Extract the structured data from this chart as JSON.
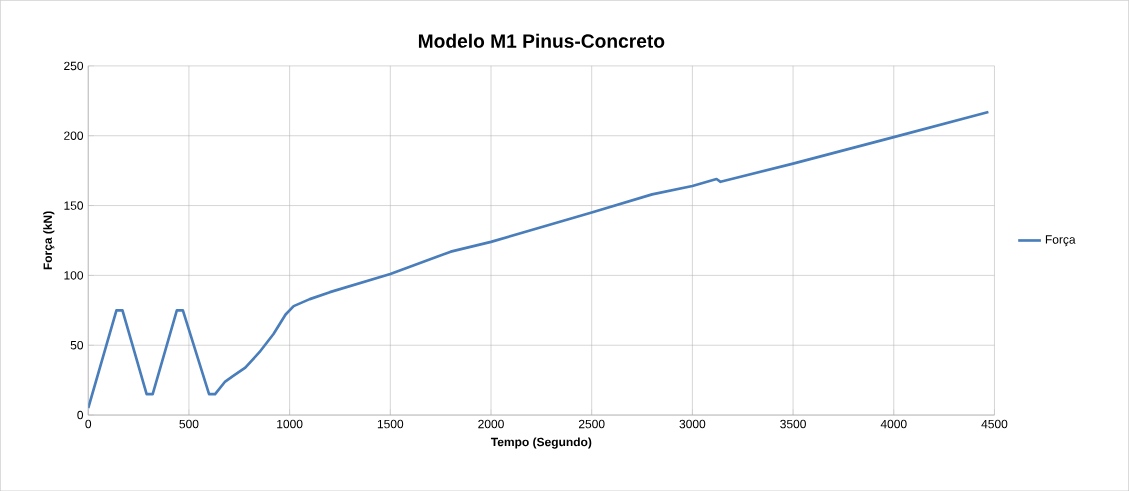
{
  "chart_data": {
    "type": "line",
    "title": "Modelo M1 Pinus-Concreto",
    "xlabel": "Tempo (Segundo)",
    "ylabel": "Força (kN)",
    "x": [
      0,
      140,
      170,
      290,
      320,
      440,
      470,
      600,
      630,
      680,
      720,
      780,
      850,
      920,
      980,
      1020,
      1100,
      1200,
      1500,
      1800,
      2000,
      2500,
      2800,
      3000,
      3120,
      3140,
      3500,
      4000,
      4470
    ],
    "series": [
      {
        "name": "Força",
        "color": "#4a7ebb",
        "values": [
          5,
          75,
          75,
          15,
          15,
          75,
          75,
          15,
          15,
          24,
          28,
          34,
          45,
          58,
          72,
          78,
          83,
          88,
          101,
          117,
          124,
          145,
          158,
          164,
          169,
          167,
          180,
          199,
          217
        ]
      }
    ],
    "xlim": [
      0,
      4500
    ],
    "xticks": [
      0,
      500,
      1000,
      1500,
      2000,
      2500,
      3000,
      3500,
      4000,
      4500
    ],
    "ylim": [
      0,
      250
    ],
    "yticks": [
      0,
      50,
      100,
      150,
      200,
      250
    ],
    "grid": true,
    "legend": "right",
    "marker": "none",
    "line_style": "solid"
  }
}
